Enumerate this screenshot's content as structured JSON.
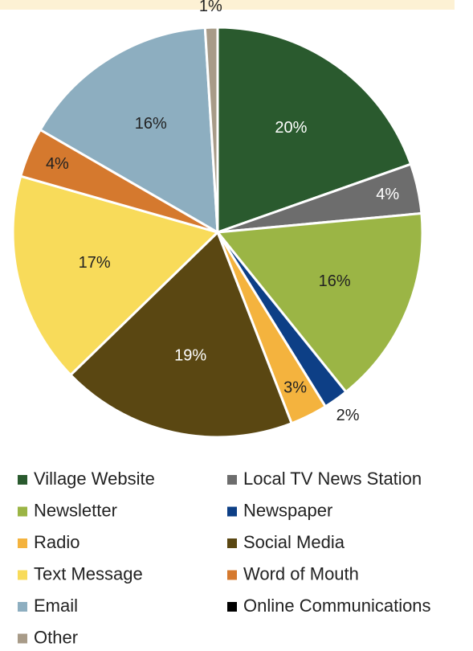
{
  "chart_data": {
    "type": "pie",
    "categories": [
      "Village Website",
      "Local TV News Station",
      "Newsletter",
      "Newspaper",
      "Radio",
      "Social Media",
      "Text Message",
      "Word of Mouth",
      "Email",
      "Online Communications",
      "Other"
    ],
    "values": [
      20,
      4,
      16,
      2,
      3,
      19,
      17,
      4,
      16,
      0,
      1
    ],
    "value_labels": [
      "20%",
      "4%",
      "16%",
      "2%",
      "3%",
      "19%",
      "17%",
      "4%",
      "16%",
      null,
      "1%"
    ],
    "colors": [
      "#2a5a2e",
      "#6d6d6d",
      "#9bb545",
      "#0d3f86",
      "#f4b33e",
      "#5a4712",
      "#f8db5a",
      "#d5792e",
      "#8daec0",
      "#000000",
      "#a89b88"
    ]
  }
}
